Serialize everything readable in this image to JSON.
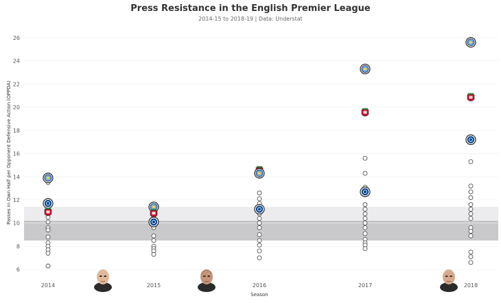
{
  "chart_data": {
    "type": "scatter",
    "title": "Press Resistance in the English Premier League",
    "subtitle": "2014-15 to 2018-19 | Data: Understat",
    "xlabel": "Season",
    "ylabel": "Passes in Own Half per Opponent Defensive Action (OPPDA)",
    "categories": [
      "2014",
      "2015",
      "2016",
      "2017",
      "2018"
    ],
    "ylim": [
      5.3,
      27
    ],
    "yticks": [
      6,
      8,
      10,
      12,
      14,
      16,
      18,
      20,
      22,
      24,
      26
    ],
    "bands": [
      {
        "from": 10.1,
        "to": 11.4,
        "color": "#ecebed"
      },
      {
        "from": 8.5,
        "to": 10.1,
        "color": "#c9c8ca"
      }
    ],
    "mean_line": 10.15,
    "highlight_colors": {
      "man-city": "#6cabdd",
      "liverpool": "#c8102e",
      "chelsea": "#034694"
    },
    "highlighted": [
      {
        "team": "man-city",
        "season": "2014",
        "value": 13.9
      },
      {
        "team": "chelsea",
        "season": "2014",
        "value": 11.7
      },
      {
        "team": "liverpool",
        "season": "2014",
        "value": 10.9
      },
      {
        "team": "man-city",
        "season": "2015",
        "value": 11.4
      },
      {
        "team": "liverpool",
        "season": "2015",
        "value": 10.8
      },
      {
        "team": "chelsea",
        "season": "2015",
        "value": 10.1
      },
      {
        "team": "liverpool",
        "season": "2016",
        "value": 14.5
      },
      {
        "team": "man-city",
        "season": "2016",
        "value": 14.3
      },
      {
        "team": "chelsea",
        "season": "2016",
        "value": 11.2
      },
      {
        "team": "man-city",
        "season": "2017",
        "value": 23.3
      },
      {
        "team": "liverpool",
        "season": "2017",
        "value": 19.5
      },
      {
        "team": "chelsea",
        "season": "2017",
        "value": 12.7
      },
      {
        "team": "man-city",
        "season": "2018",
        "value": 25.6
      },
      {
        "team": "liverpool",
        "season": "2018",
        "value": 20.8
      },
      {
        "team": "chelsea",
        "season": "2018",
        "value": 17.2
      }
    ],
    "others": {
      "2014": [
        13.5,
        11.5,
        10.5,
        10.1,
        9.6,
        9.4,
        8.8,
        8.3,
        8.0,
        7.7,
        7.4,
        6.3
      ],
      "2015": [
        11.1,
        10.9,
        10.6,
        9.7,
        9.6,
        8.9,
        8.5,
        8.0,
        7.8,
        7.6,
        7.3
      ],
      "2016": [
        12.6,
        12.1,
        11.7,
        10.8,
        10.4,
        10.0,
        9.6,
        9.0,
        8.5,
        8.1,
        7.6,
        7.0
      ],
      "2017": [
        15.6,
        14.3,
        13.1,
        11.6,
        11.2,
        10.8,
        10.4,
        10.0,
        9.6,
        9.1,
        8.6,
        8.3,
        8.1,
        7.8
      ],
      "2018": [
        15.3,
        13.2,
        12.7,
        12.2,
        11.6,
        11.2,
        10.8,
        10.4,
        9.6,
        9.3,
        8.9,
        7.5,
        7.1,
        6.6
      ]
    },
    "manager_faces": [
      {
        "name": "klopp-face",
        "season_between": [
          "2014",
          "2015"
        ],
        "skin": "#e2b79a",
        "hair": "#d9cdbf"
      },
      {
        "name": "guardiola-face",
        "season_between": [
          "2015",
          "2016"
        ],
        "skin": "#c59479",
        "hair": "#5a4636"
      },
      {
        "name": "sarri-face",
        "season_between": [
          "2017",
          "2018"
        ],
        "skin": "#d6a98c",
        "hair": "#dcdcdc"
      }
    ]
  }
}
